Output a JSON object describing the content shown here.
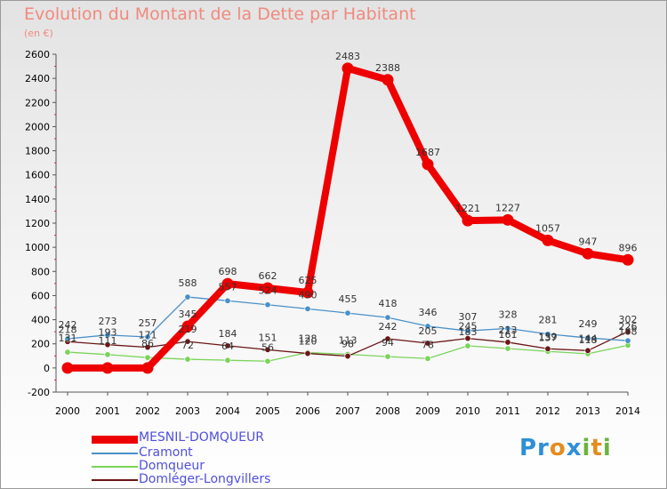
{
  "chart_data": {
    "type": "line",
    "title": "Evolution du Montant de la Dette par Habitant",
    "subtitle": "(en €)",
    "x": [
      2000,
      2001,
      2002,
      2003,
      2004,
      2005,
      2006,
      2007,
      2008,
      2009,
      2010,
      2011,
      2012,
      2013,
      2014
    ],
    "ylim": [
      -200,
      2600
    ],
    "yticks": [
      -200,
      0,
      200,
      400,
      600,
      800,
      1000,
      1200,
      1400,
      1600,
      1800,
      2000,
      2200,
      2400,
      2600
    ],
    "grid": false,
    "legend_placement": "bottom",
    "series": [
      {
        "name": "MESNIL-DOMQUEUR",
        "color": "#ee0000",
        "values": [
          0,
          0,
          0,
          345,
          698,
          662,
          625,
          2483,
          2388,
          1687,
          1221,
          1227,
          1057,
          947,
          896
        ],
        "labels": [
          "",
          "",
          "",
          "345",
          "698",
          "662",
          "625",
          "2483",
          "2388",
          "1687",
          "1221",
          "1227",
          "1057",
          "947",
          "896"
        ]
      },
      {
        "name": "Cramont",
        "color": "#4a90c8",
        "values": [
          242,
          273,
          257,
          588,
          557,
          524,
          490,
          455,
          418,
          346,
          307,
          328,
          281,
          249,
          226
        ],
        "labels": [
          "242",
          "273",
          "257",
          "588",
          "557",
          "524",
          "490",
          "455",
          "418",
          "346",
          "307",
          "328",
          "281",
          "249",
          "226"
        ]
      },
      {
        "name": "Domqueur",
        "color": "#7bd35b",
        "values": [
          131,
          111,
          86,
          72,
          64,
          56,
          128,
          113,
          94,
          78,
          183,
          161,
          137,
          118,
          188
        ],
        "labels": [
          "131",
          "111",
          "86",
          "72",
          "64",
          "56",
          "128",
          "113",
          "94",
          "78",
          "183",
          "161",
          "137",
          "118",
          "188"
        ]
      },
      {
        "name": "Domléger-Longvillers",
        "color": "#6a1616",
        "values": [
          218,
          193,
          171,
          219,
          184,
          151,
          120,
          98,
          242,
          205,
          245,
          213,
          159,
          144,
          302
        ],
        "labels": [
          "218",
          "193",
          "171",
          "219",
          "184",
          "151",
          "120",
          "98",
          "242",
          "205",
          "245",
          "213",
          "159",
          "144",
          "302"
        ]
      }
    ]
  },
  "logo_text": "Proxiti"
}
